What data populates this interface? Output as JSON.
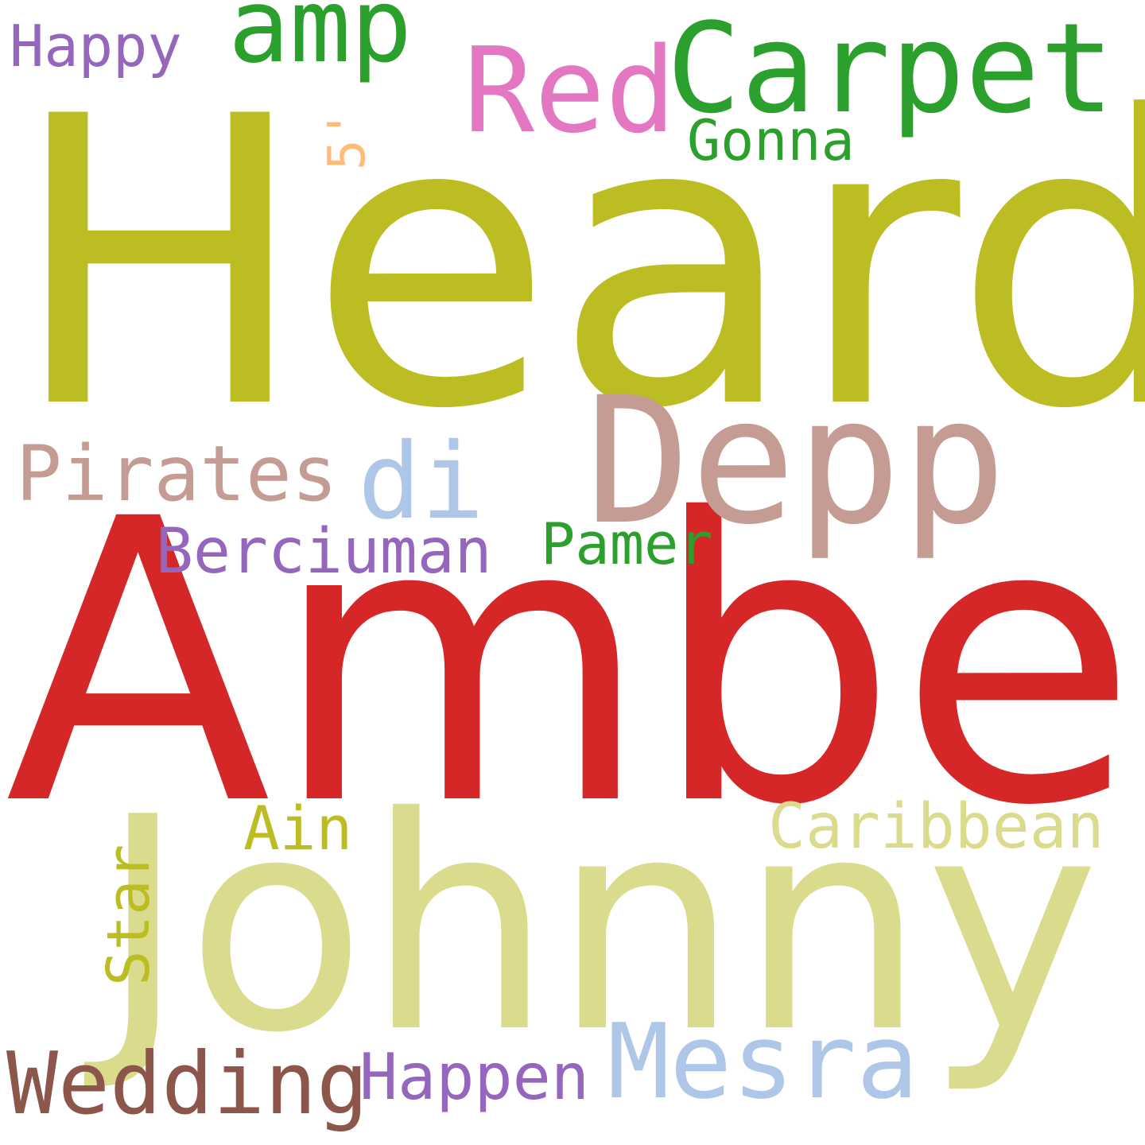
{
  "words": [
    {
      "id": "heard",
      "text": "Heard",
      "color": "#bcbd22",
      "orientation": "horizontal",
      "weight": 1.0
    },
    {
      "id": "amber",
      "text": "Amber",
      "color": "#d62728",
      "orientation": "horizontal",
      "weight": 0.98
    },
    {
      "id": "johnny",
      "text": "Johnny",
      "color": "#dbdb8d",
      "orientation": "horizontal",
      "weight": 0.72
    },
    {
      "id": "depp",
      "text": "Depp",
      "color": "#c49c94",
      "orientation": "horizontal",
      "weight": 0.45
    },
    {
      "id": "carpet",
      "text": "Carpet",
      "color": "#2ca02c",
      "orientation": "horizontal",
      "weight": 0.28
    },
    {
      "id": "red",
      "text": "Red",
      "color": "#e377c2",
      "orientation": "horizontal",
      "weight": 0.27
    },
    {
      "id": "amp",
      "text": "amp",
      "color": "#2ca02c",
      "orientation": "horizontal",
      "weight": 0.24
    },
    {
      "id": "mesra",
      "text": "Mesra",
      "color": "#aec7e8",
      "orientation": "horizontal",
      "weight": 0.22
    },
    {
      "id": "wedding",
      "text": "Wedding",
      "color": "#8c564b",
      "orientation": "horizontal",
      "weight": 0.2
    },
    {
      "id": "di",
      "text": "di",
      "color": "#aec7e8",
      "orientation": "horizontal",
      "weight": 0.2
    },
    {
      "id": "pirates",
      "text": "Pirates",
      "color": "#c49c94",
      "orientation": "horizontal",
      "weight": 0.17
    },
    {
      "id": "berciuman",
      "text": "Berciuman",
      "color": "#9467bd",
      "orientation": "horizontal",
      "weight": 0.14
    },
    {
      "id": "caribbean",
      "text": "Caribbean",
      "color": "#dbdb8d",
      "orientation": "horizontal",
      "weight": 0.14
    },
    {
      "id": "happen",
      "text": "Happen",
      "color": "#9467bd",
      "orientation": "horizontal",
      "weight": 0.13
    },
    {
      "id": "pamer",
      "text": "Pamer",
      "color": "#2ca02c",
      "orientation": "horizontal",
      "weight": 0.12
    },
    {
      "id": "ain",
      "text": "Ain",
      "color": "#bcbd22",
      "orientation": "horizontal",
      "weight": 0.12
    },
    {
      "id": "happy",
      "text": "Happy",
      "color": "#9467bd",
      "orientation": "horizontal",
      "weight": 0.12
    },
    {
      "id": "gonna",
      "text": "Gonna",
      "color": "#2ca02c",
      "orientation": "horizontal",
      "weight": 0.12
    },
    {
      "id": "star",
      "text": "Star",
      "color": "#bcbd22",
      "orientation": "vertical",
      "weight": 0.12
    },
    {
      "id": "5",
      "text": "5'",
      "color": "#ffbb78",
      "orientation": "vertical",
      "weight": 0.1
    }
  ]
}
